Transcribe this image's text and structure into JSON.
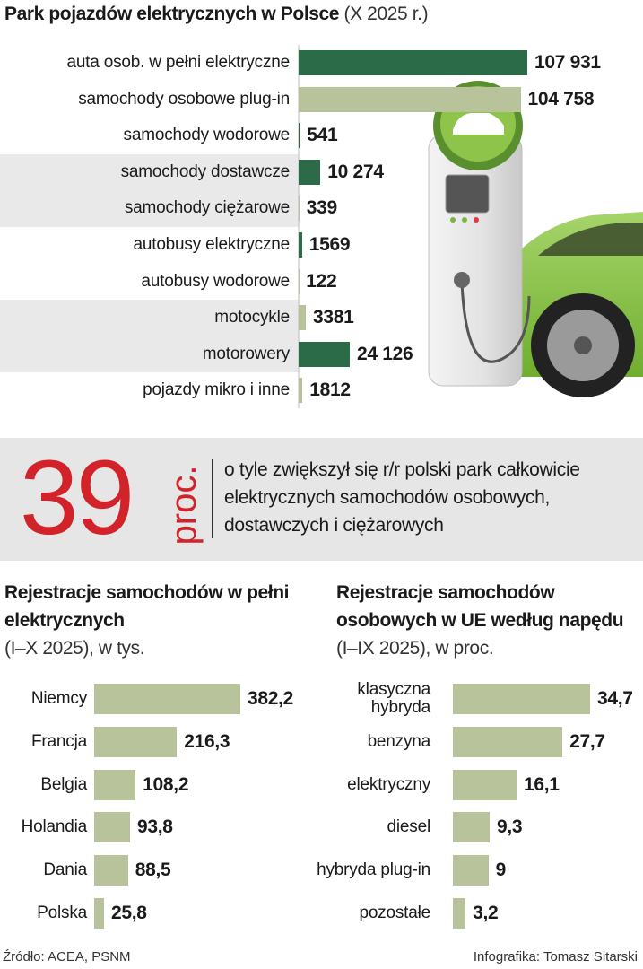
{
  "chart_data": [
    {
      "type": "bar",
      "orientation": "horizontal",
      "title": "Park pojazdów elektrycznych w Polsce",
      "subtitle": "(X 2025 r.)",
      "categories": [
        "auta osob. w pełni elektryczne",
        "samochody osobowe plug-in",
        "samochody wodorowe",
        "samochody dostawcze",
        "samochody ciężarowe",
        "autobusy elektryczne",
        "autobusy wodorowe",
        "motocykle",
        "motorowery",
        "pojazdy mikro i inne"
      ],
      "values": [
        107931,
        104758,
        541,
        10274,
        339,
        1569,
        122,
        3381,
        24126,
        1812
      ],
      "value_labels": [
        "107 931",
        "104 758",
        "541",
        "10 274",
        "339",
        "1569",
        "122",
        "3381",
        "24 126",
        "1812"
      ],
      "colors": [
        "#2c6b48",
        "#b8c29b",
        "#2c6b48",
        "#2c6b48",
        "#b8c29b",
        "#2c6b48",
        "#b8c29b",
        "#b8c29b",
        "#2c6b48",
        "#b8c29b"
      ]
    },
    {
      "type": "bar",
      "orientation": "horizontal",
      "title": "Rejestracje samochodów w pełni elektrycznych",
      "subtitle": "(I–X 2025), w tys.",
      "categories": [
        "Niemcy",
        "Francja",
        "Belgia",
        "Holandia",
        "Dania",
        "Polska"
      ],
      "values": [
        382.2,
        216.3,
        108.2,
        93.8,
        88.5,
        25.8
      ],
      "value_labels": [
        "382,2",
        "216,3",
        "108,2",
        "93,8",
        "88,5",
        "25,8"
      ],
      "color": "#b8c29b"
    },
    {
      "type": "bar",
      "orientation": "horizontal",
      "title": "Rejestracje samochodów osobowych w UE według napędu",
      "subtitle": "(I–IX 2025), w proc.",
      "categories": [
        "klasyczna hybryda",
        "benzyna",
        "elektryczny",
        "diesel",
        "hybryda plug-in",
        "pozostałe"
      ],
      "values": [
        34.7,
        27.7,
        16.1,
        9.3,
        9,
        3.2
      ],
      "value_labels": [
        "34,7",
        "27,7",
        "16,1",
        "9,3",
        "9",
        "3,2"
      ],
      "color": "#b8c29b"
    }
  ],
  "callout": {
    "value": 39,
    "unit": "proc.",
    "text": "o tyle zwiększył się r/r polski park całkowicie elektrycznych samochodów osobowych, dostawczych i ciężarowych"
  },
  "footer": {
    "source": "Źródło: ACEA, PSNM",
    "credit": "Infografika: Tomasz Sitarski"
  }
}
